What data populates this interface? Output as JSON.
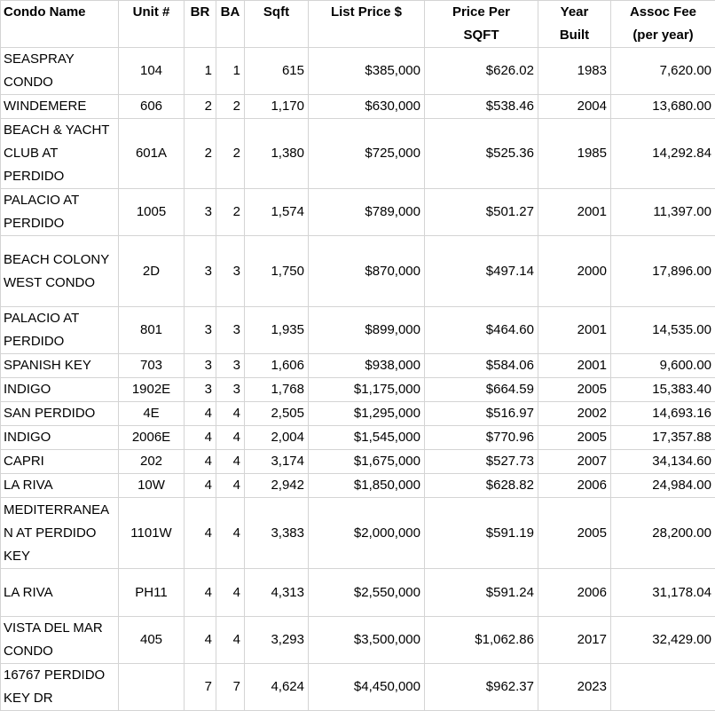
{
  "table": {
    "headers": [
      "Condo Name",
      "Unit #",
      "BR",
      "BA",
      "Sqft",
      "List Price $",
      "Price Per\nSQFT",
      "Year\nBuilt",
      "Assoc Fee\n(per year)"
    ],
    "rows": [
      [
        "SEASPRAY CONDO",
        "104",
        "1",
        "1",
        "615",
        "$385,000",
        "$626.02",
        "1983",
        "7,620.00"
      ],
      [
        "WINDEMERE",
        "606",
        "2",
        "2",
        "1,170",
        "$630,000",
        "$538.46",
        "2004",
        "13,680.00"
      ],
      [
        "BEACH & YACHT CLUB AT PERDIDO",
        "601A",
        "2",
        "2",
        "1,380",
        "$725,000",
        "$525.36",
        "1985",
        "14,292.84"
      ],
      [
        "PALACIO AT PERDIDO",
        "1005",
        "3",
        "2",
        "1,574",
        "$789,000",
        "$501.27",
        "2001",
        "11,397.00"
      ],
      [
        "BEACH COLONY WEST CONDO",
        "2D",
        "3",
        "3",
        "1,750",
        "$870,000",
        "$497.14",
        "2000",
        "17,896.00"
      ],
      [
        "PALACIO AT PERDIDO",
        "801",
        "3",
        "3",
        "1,935",
        "$899,000",
        "$464.60",
        "2001",
        "14,535.00"
      ],
      [
        "SPANISH KEY",
        "703",
        "3",
        "3",
        "1,606",
        "$938,000",
        "$584.06",
        "2001",
        "9,600.00"
      ],
      [
        "INDIGO",
        "1902E",
        "3",
        "3",
        "1,768",
        "$1,175,000",
        "$664.59",
        "2005",
        "15,383.40"
      ],
      [
        "SAN PERDIDO",
        "4E",
        "4",
        "4",
        "2,505",
        "$1,295,000",
        "$516.97",
        "2002",
        "14,693.16"
      ],
      [
        "INDIGO",
        "2006E",
        "4",
        "4",
        "2,004",
        "$1,545,000",
        "$770.96",
        "2005",
        "17,357.88"
      ],
      [
        "CAPRI",
        "202",
        "4",
        "4",
        "3,174",
        "$1,675,000",
        "$527.73",
        "2007",
        "34,134.60"
      ],
      [
        "LA RIVA",
        "10W",
        "4",
        "4",
        "2,942",
        "$1,850,000",
        "$628.82",
        "2006",
        "24,984.00"
      ],
      [
        "MEDITERRANEAN AT PERDIDO KEY",
        "1101W",
        "4",
        "4",
        "3,383",
        "$2,000,000",
        "$591.19",
        "2005",
        "28,200.00"
      ],
      [
        "LA RIVA",
        "PH11",
        "4",
        "4",
        "4,313",
        "$2,550,000",
        "$591.24",
        "2006",
        "31,178.04"
      ],
      [
        "VISTA DEL MAR CONDO",
        "405",
        "4",
        "4",
        "3,293",
        "$3,500,000",
        "$1,062.86",
        "2017",
        "32,429.00"
      ],
      [
        "16767 PERDIDO KEY DR",
        "",
        "7",
        "7",
        "4,624",
        "$4,450,000",
        "$962.37",
        "2023",
        ""
      ]
    ]
  },
  "colors": {
    "grid_line": "#d4d4d4",
    "text": "#000000",
    "background": "#ffffff"
  }
}
